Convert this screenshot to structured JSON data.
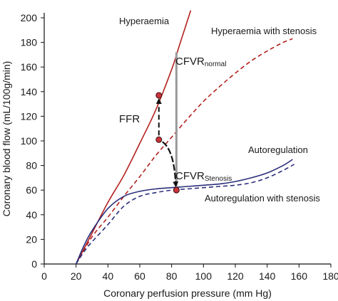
{
  "chart_data": {
    "type": "line",
    "xlabel": "Coronary perfusion pressure (mm Hg)",
    "ylabel": "Coronary blood flow (mL/100g/min)",
    "xlim": [
      0,
      180
    ],
    "ylim": [
      0,
      200
    ],
    "x_ticks": [
      0,
      20,
      40,
      60,
      80,
      100,
      120,
      140,
      160,
      180
    ],
    "y_ticks": [
      0,
      20,
      40,
      60,
      80,
      100,
      120,
      140,
      160,
      180,
      200
    ],
    "grid": false,
    "series": [
      {
        "name": "Hyperaemia",
        "color": "#b3221f",
        "style": "solid",
        "points": [
          [
            20,
            0
          ],
          [
            30,
            25
          ],
          [
            40,
            50
          ],
          [
            50,
            72
          ],
          [
            60,
            98
          ],
          [
            70,
            125
          ],
          [
            80,
            158
          ],
          [
            85,
            178
          ],
          [
            92,
            206
          ]
        ]
      },
      {
        "name": "Hyperaemia with stenosis",
        "color": "#b3221f",
        "style": "dashed",
        "points": [
          [
            20,
            0
          ],
          [
            30,
            22
          ],
          [
            40,
            38
          ],
          [
            50,
            55
          ],
          [
            60,
            71
          ],
          [
            70,
            88
          ],
          [
            80,
            103
          ],
          [
            90,
            118
          ],
          [
            100,
            132
          ],
          [
            110,
            144
          ],
          [
            120,
            155
          ],
          [
            130,
            165
          ],
          [
            140,
            173
          ],
          [
            150,
            180
          ],
          [
            156,
            183
          ]
        ]
      },
      {
        "name": "Autoregulation",
        "color": "#2b2f7a",
        "style": "solid",
        "points": [
          [
            20,
            0
          ],
          [
            25,
            15
          ],
          [
            30,
            27
          ],
          [
            40,
            45
          ],
          [
            50,
            55
          ],
          [
            60,
            59
          ],
          [
            70,
            61
          ],
          [
            80,
            62
          ],
          [
            90,
            63
          ],
          [
            100,
            64
          ],
          [
            110,
            65
          ],
          [
            120,
            67
          ],
          [
            130,
            70
          ],
          [
            140,
            74
          ],
          [
            150,
            80
          ],
          [
            156,
            85
          ]
        ]
      },
      {
        "name": "Autoregulation with stenosis",
        "color": "#2b2f7a",
        "style": "dashed",
        "points": [
          [
            20,
            0
          ],
          [
            25,
            10
          ],
          [
            30,
            18
          ],
          [
            40,
            32
          ],
          [
            50,
            47
          ],
          [
            60,
            55
          ],
          [
            70,
            58
          ],
          [
            80,
            60
          ],
          [
            90,
            61
          ],
          [
            100,
            62
          ],
          [
            110,
            63
          ],
          [
            120,
            64
          ],
          [
            130,
            66
          ],
          [
            140,
            70
          ],
          [
            150,
            76
          ],
          [
            157,
            81
          ]
        ]
      }
    ],
    "markers": [
      {
        "x": 72,
        "y": 137
      },
      {
        "x": 72,
        "y": 101
      },
      {
        "x": 83,
        "y": 60
      }
    ],
    "annotations": {
      "ffr": "FFR",
      "cfvr_normal_main": "CFVR",
      "cfvr_normal_sub": "normal",
      "cfvr_stenosis_main": "CFVR",
      "cfvr_stenosis_sub": "Stenosis"
    },
    "cfvr_bar_x": 83,
    "cfvr_bar_y": [
      60,
      172
    ],
    "colors": {
      "hyperaemia": "#b3221f",
      "autoregulation": "#2b2f7a",
      "marker_fill": "#c8343a",
      "bar": "#9a9a9a"
    }
  }
}
